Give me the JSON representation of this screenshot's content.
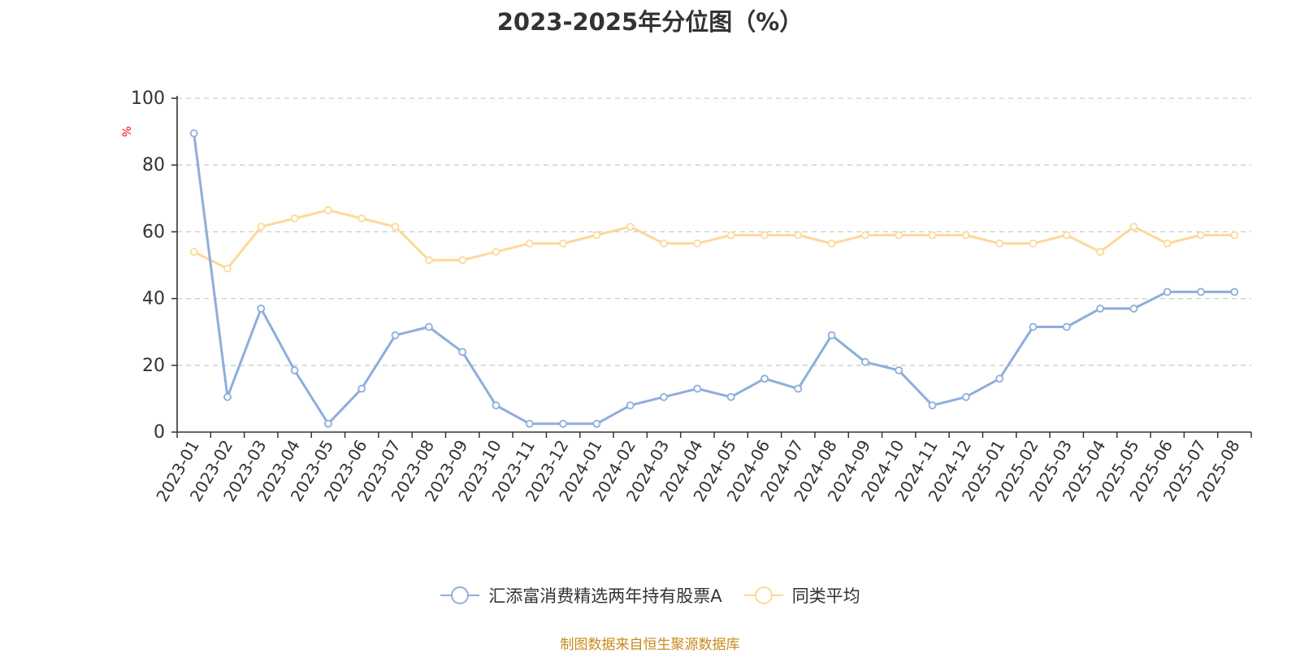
{
  "chart_data": {
    "type": "line",
    "title": "2023-2025年分位图（%）",
    "ylabel": "%",
    "xlabel": "",
    "ylim": [
      0,
      100
    ],
    "yticks": [
      0,
      20,
      40,
      60,
      80,
      100
    ],
    "grid": true,
    "legend_position": "bottom",
    "categories": [
      "2023-01",
      "2023-02",
      "2023-03",
      "2023-04",
      "2023-05",
      "2023-06",
      "2023-07",
      "2023-08",
      "2023-09",
      "2023-10",
      "2023-11",
      "2023-12",
      "2024-01",
      "2024-02",
      "2024-03",
      "2024-04",
      "2024-05",
      "2024-06",
      "2024-07",
      "2024-08",
      "2024-09",
      "2024-10",
      "2024-11",
      "2024-12",
      "2025-01",
      "2025-02",
      "2025-03",
      "2025-04",
      "2025-05",
      "2025-06",
      "2025-07",
      "2025-08"
    ],
    "series": [
      {
        "name": "汇添富消费精选两年持有股票A",
        "color": "#8eaedb",
        "values": [
          89.5,
          10.5,
          37,
          18.5,
          2.5,
          13,
          29,
          31.5,
          24,
          8,
          2.5,
          2.5,
          2.5,
          8,
          10.5,
          13,
          10.5,
          16,
          13,
          29,
          21,
          18.5,
          8,
          10.5,
          16,
          31.5,
          31.5,
          37,
          37,
          42,
          42,
          42
        ]
      },
      {
        "name": "同类平均",
        "color": "#fdd89a",
        "values": [
          54,
          49,
          61.5,
          64,
          66.5,
          64,
          61.5,
          51.5,
          51.5,
          54,
          56.5,
          56.5,
          59,
          61.5,
          56.5,
          56.5,
          59,
          59,
          59,
          56.5,
          59,
          59,
          59,
          59,
          56.5,
          56.5,
          59,
          54,
          61.5,
          56.5,
          59,
          59
        ]
      }
    ]
  },
  "source_text": "制图数据来自恒生聚源数据库"
}
